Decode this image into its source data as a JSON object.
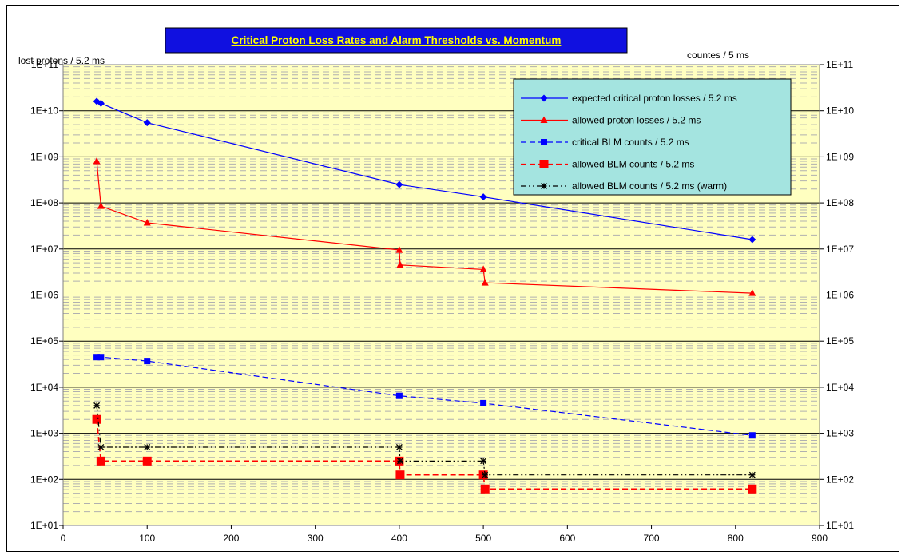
{
  "chart_data": {
    "type": "line",
    "title": "Critical Proton Loss Rates and Alarm Thresholds vs. Momentum",
    "ylabel_left": "lost protons / 5.2 ms",
    "ylabel_right": "countes / 5 ms",
    "xlabel": "",
    "xlim": [
      0,
      900
    ],
    "x_ticks": [
      "0",
      "100",
      "200",
      "300",
      "400",
      "500",
      "600",
      "700",
      "800",
      "900"
    ],
    "y_scale": "log",
    "ylim": [
      10,
      100000000000
    ],
    "y_ticks": [
      "1E+01",
      "1E+02",
      "1E+03",
      "1E+04",
      "1E+05",
      "1E+06",
      "1E+07",
      "1E+08",
      "1E+09",
      "1E+10",
      "1E+11"
    ],
    "grid": true,
    "plot_background": "#ffffc0",
    "legend_placement": "top-right",
    "legend_background": "#a4e4e0",
    "title_background": "#1010e0",
    "title_color": "#ffff00",
    "series": [
      {
        "name": "expected critical proton losses / 5.2 ms",
        "color": "#0000ff",
        "dash": "solid",
        "marker": "diamond",
        "x": [
          40,
          45,
          100,
          400,
          500,
          820
        ],
        "y": [
          16000000000,
          14500000000,
          5500000000,
          250000000,
          135000000,
          16000000
        ]
      },
      {
        "name": "allowed proton losses / 5.2 ms",
        "color": "#ff0000",
        "dash": "solid",
        "marker": "triangle",
        "x": [
          40,
          45,
          100,
          400,
          401,
          500,
          502,
          820
        ],
        "y": [
          800000000,
          85000000,
          37000000,
          9500000,
          4500000,
          3600000,
          1850000,
          1100000
        ]
      },
      {
        "name": "critical BLM counts / 5.2 ms",
        "color": "#0000ff",
        "dash": "dashed",
        "marker": "square",
        "x": [
          40,
          45,
          100,
          400,
          500,
          820
        ],
        "y": [
          45000,
          45000,
          37000,
          6500,
          4500,
          900
        ]
      },
      {
        "name": "allowed BLM counts / 5.2 ms",
        "color": "#ff0000",
        "dash": "dashed",
        "marker": "big-square",
        "x": [
          40,
          45,
          100,
          400,
          401,
          500,
          502,
          820
        ],
        "y": [
          2000,
          250,
          250,
          250,
          125,
          125,
          62,
          62
        ]
      },
      {
        "name": "allowed BLM counts / 5.2 ms (warm)",
        "color": "#000000",
        "dash": "dashdotdot",
        "marker": "star",
        "x": [
          40,
          45,
          100,
          400,
          401,
          500,
          502,
          820
        ],
        "y": [
          4000,
          500,
          500,
          500,
          250,
          250,
          125,
          125
        ]
      }
    ]
  }
}
